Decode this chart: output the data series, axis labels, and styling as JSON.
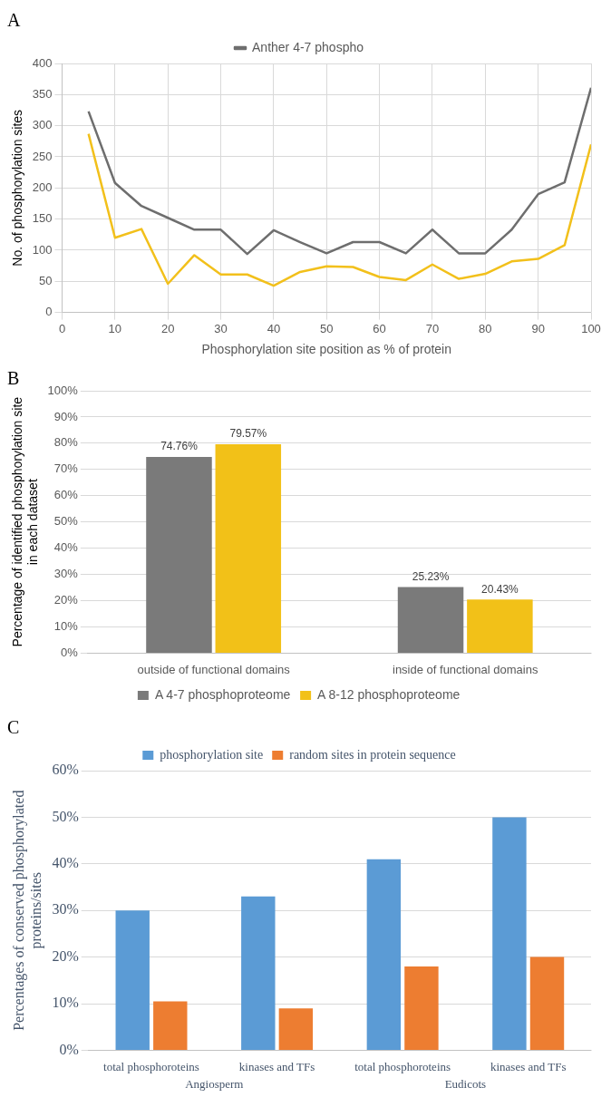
{
  "chart_data": [
    {
      "type": "line",
      "title": "A",
      "xlabel": "Phosphorylation site position as % of protein",
      "ylabel": "No. of phosphorylation sites",
      "x": [
        5,
        10,
        15,
        20,
        25,
        30,
        35,
        40,
        45,
        50,
        55,
        60,
        65,
        70,
        75,
        80,
        85,
        90,
        95,
        100
      ],
      "series": [
        {
          "name": "Anther 4-7 phospho",
          "color": "#6e6e6e",
          "values": [
            323,
            208,
            171,
            152,
            133,
            133,
            94,
            132,
            113,
            95,
            113,
            113,
            95,
            133,
            95,
            95,
            133,
            190,
            209,
            361
          ]
        },
        {
          "color": "#f2c01b",
          "values": [
            287,
            120,
            134,
            46,
            92,
            61,
            61,
            43,
            65,
            74,
            73,
            57,
            52,
            77,
            54,
            62,
            82,
            86,
            108,
            270
          ]
        }
      ],
      "xlim": [
        0,
        100
      ],
      "xticks": [
        0,
        10,
        20,
        30,
        40,
        50,
        60,
        70,
        80,
        90,
        100
      ],
      "ylim": [
        0,
        400
      ],
      "yticks": [
        0,
        50,
        100,
        150,
        200,
        250,
        300,
        350,
        400
      ],
      "grid": true,
      "legend": "top",
      "marker": "none"
    },
    {
      "type": "bar",
      "title": "B",
      "ylabel": "Percentage of identified phosphorylation site\nin each dataset",
      "categories": [
        "outside of functional domains",
        "inside of functional domains"
      ],
      "series": [
        {
          "name": "A 4-7 phosphoproteome",
          "color": "#7a7a7a",
          "values": [
            74.76,
            25.23
          ],
          "value_labels": [
            "74.76%",
            "25.23%"
          ]
        },
        {
          "name": "A 8-12 phosphoproteome",
          "color": "#f2c118",
          "values": [
            79.57,
            20.43
          ],
          "value_labels": [
            "79.57%",
            "20.43%"
          ]
        }
      ],
      "ylim": [
        0,
        100
      ],
      "yticks": [
        {
          "value": 0,
          "label": "0%"
        },
        {
          "value": 10,
          "label": "10%"
        },
        {
          "value": 20,
          "label": "20%"
        },
        {
          "value": 30,
          "label": "30%"
        },
        {
          "value": 40,
          "label": "40%"
        },
        {
          "value": 50,
          "label": "50%"
        },
        {
          "value": 60,
          "label": "60%"
        },
        {
          "value": 70,
          "label": "70%"
        },
        {
          "value": 80,
          "label": "80%"
        },
        {
          "value": 90,
          "label": "90%"
        },
        {
          "value": 100,
          "label": "100%"
        }
      ],
      "grid": "y",
      "legend": "bottom"
    },
    {
      "type": "bar",
      "title": "C",
      "ylabel": "Percentages of conserved phosphorylated\nproteins/sites",
      "categories": [
        "total phosphoroteins",
        "kinases and TFs",
        "total phosphoroteins",
        "kinases and TFs"
      ],
      "series": [
        {
          "name": "phosphorylation site",
          "color": "#5b9bd5",
          "values": [
            30,
            33,
            41,
            50
          ]
        },
        {
          "name": "random sites in protein sequence",
          "color": "#ed7d31",
          "values": [
            10.5,
            9,
            18,
            20
          ]
        }
      ],
      "annotations": [
        "Angiosperm",
        "Eudicots"
      ],
      "ylim": [
        0,
        60
      ],
      "yticks": [
        {
          "value": 0,
          "label": "0%"
        },
        {
          "value": 10,
          "label": "10%"
        },
        {
          "value": 20,
          "label": "20%"
        },
        {
          "value": 30,
          "label": "30%"
        },
        {
          "value": 40,
          "label": "40%"
        },
        {
          "value": 50,
          "label": "50%"
        },
        {
          "value": 60,
          "label": "60%"
        }
      ],
      "grid": "y",
      "legend": "top"
    }
  ]
}
